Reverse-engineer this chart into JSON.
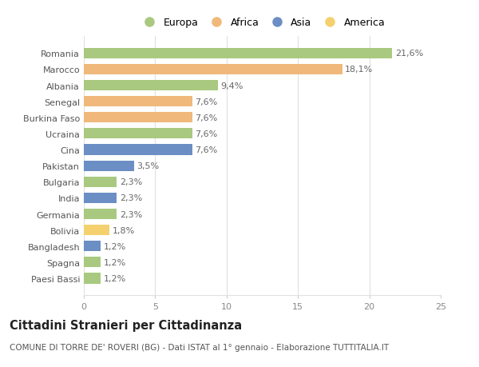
{
  "countries": [
    "Romania",
    "Marocco",
    "Albania",
    "Senegal",
    "Burkina Faso",
    "Ucraina",
    "Cina",
    "Pakistan",
    "Bulgaria",
    "India",
    "Germania",
    "Bolivia",
    "Bangladesh",
    "Spagna",
    "Paesi Bassi"
  ],
  "values": [
    21.6,
    18.1,
    9.4,
    7.6,
    7.6,
    7.6,
    7.6,
    3.5,
    2.3,
    2.3,
    2.3,
    1.8,
    1.2,
    1.2,
    1.2
  ],
  "labels": [
    "21,6%",
    "18,1%",
    "9,4%",
    "7,6%",
    "7,6%",
    "7,6%",
    "7,6%",
    "3,5%",
    "2,3%",
    "2,3%",
    "2,3%",
    "1,8%",
    "1,2%",
    "1,2%",
    "1,2%"
  ],
  "continents": [
    "Europa",
    "Africa",
    "Europa",
    "Africa",
    "Africa",
    "Europa",
    "Asia",
    "Asia",
    "Europa",
    "Asia",
    "Europa",
    "America",
    "Asia",
    "Europa",
    "Europa"
  ],
  "continent_colors": {
    "Europa": "#a8c97f",
    "Africa": "#f0b87a",
    "Asia": "#6b8ec4",
    "America": "#f5d06e"
  },
  "legend_order": [
    "Europa",
    "Africa",
    "Asia",
    "America"
  ],
  "title": "Cittadini Stranieri per Cittadinanza",
  "subtitle": "COMUNE DI TORRE DE' ROVERI (BG) - Dati ISTAT al 1° gennaio - Elaborazione TUTTITALIA.IT",
  "xlim": [
    0,
    25
  ],
  "xticks": [
    0,
    5,
    10,
    15,
    20,
    25
  ],
  "bg_color": "#ffffff",
  "grid_color": "#e0e0e0",
  "bar_height": 0.65,
  "label_fontsize": 8,
  "tick_fontsize": 8,
  "title_fontsize": 10.5,
  "subtitle_fontsize": 7.5
}
